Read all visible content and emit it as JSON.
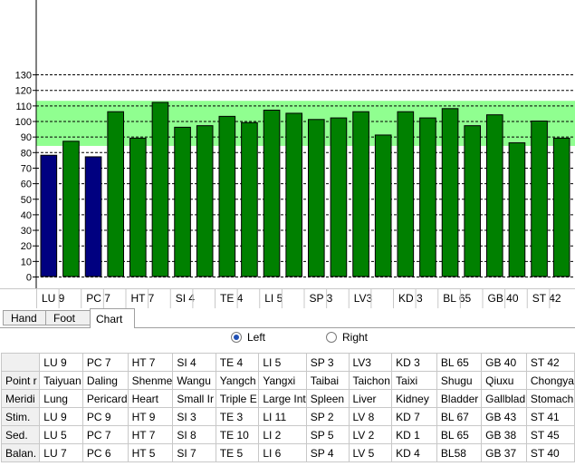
{
  "chart_data": {
    "type": "bar",
    "yticks": [
      0,
      10,
      20,
      30,
      40,
      50,
      60,
      70,
      80,
      90,
      100,
      110,
      120,
      130
    ],
    "ylim": [
      0,
      135
    ],
    "band": [
      84,
      113
    ],
    "categories": [
      "LU 9",
      "",
      "PC 7",
      "",
      "HT 7",
      "",
      "SI 4",
      "",
      "TE 4",
      "",
      "LI 5",
      "",
      "SP 3",
      "",
      "LV3",
      "",
      "KD 3",
      "",
      "BL 65",
      "",
      "GB 40",
      "",
      "ST 42",
      ""
    ],
    "values": [
      78,
      87,
      77,
      106,
      89,
      112,
      96,
      97,
      103,
      99,
      107,
      105,
      101,
      102,
      106,
      91,
      106,
      102,
      108,
      97,
      104,
      86,
      100,
      89
    ],
    "bar_colors": [
      "#000080",
      "#008000",
      "#000080",
      "#008000",
      "#008000",
      "#008000",
      "#008000",
      "#008000",
      "#008000",
      "#008000",
      "#008000",
      "#008000",
      "#008000",
      "#008000",
      "#008000",
      "#008000",
      "#008000",
      "#008000",
      "#008000",
      "#008000",
      "#008000",
      "#008000",
      "#008000",
      "#008000"
    ],
    "band_color": "#90ff90",
    "grid": true
  },
  "tabs": [
    "Hand",
    "Foot",
    "Chart"
  ],
  "radios": {
    "left": "Left",
    "right": "Right",
    "selected": "left"
  },
  "table": {
    "header": [
      "",
      "LU 9",
      "PC 7",
      "HT 7",
      "SI 4",
      "TE 4",
      "LI 5",
      "SP 3",
      "LV3",
      "KD 3",
      "BL 65",
      "GB 40",
      "ST 42"
    ],
    "rows": [
      [
        "Point r",
        "Taiyuan",
        "Daling",
        "Shenme",
        "Wangu",
        "Yangch",
        "Yangxi",
        "Taibai",
        "Taichon",
        "Taixi",
        "Shugu",
        "Qiuxu",
        "Chongya"
      ],
      [
        "Meridi",
        "Lung",
        "Pericard",
        "Heart",
        "Small Ir",
        "Triple E",
        "Large Int",
        "Spleen",
        "Liver",
        "Kidney",
        "Bladder",
        "Gallblad",
        "Stomach"
      ],
      [
        "Stim.",
        "LU 9",
        "PC 9",
        "HT 9",
        "SI 3",
        "TE 3",
        "LI 11",
        "SP 2",
        "LV 8",
        "KD 7",
        "BL 67",
        "GB 43",
        "ST 41"
      ],
      [
        "Sed.",
        "LU 5",
        "PC 7",
        "HT 7",
        "SI 8",
        "TE 10",
        "LI 2",
        "SP 5",
        "LV 2",
        "KD 1",
        "BL 65",
        "GB 38",
        "ST 45"
      ],
      [
        "Balan.",
        "LU 7",
        "PC 6",
        "HT 5",
        "SI 7",
        "TE 5",
        "LI 6",
        "SP 4",
        "LV 5",
        "KD 4",
        "BL58",
        "GB 37",
        "ST 40"
      ]
    ]
  }
}
